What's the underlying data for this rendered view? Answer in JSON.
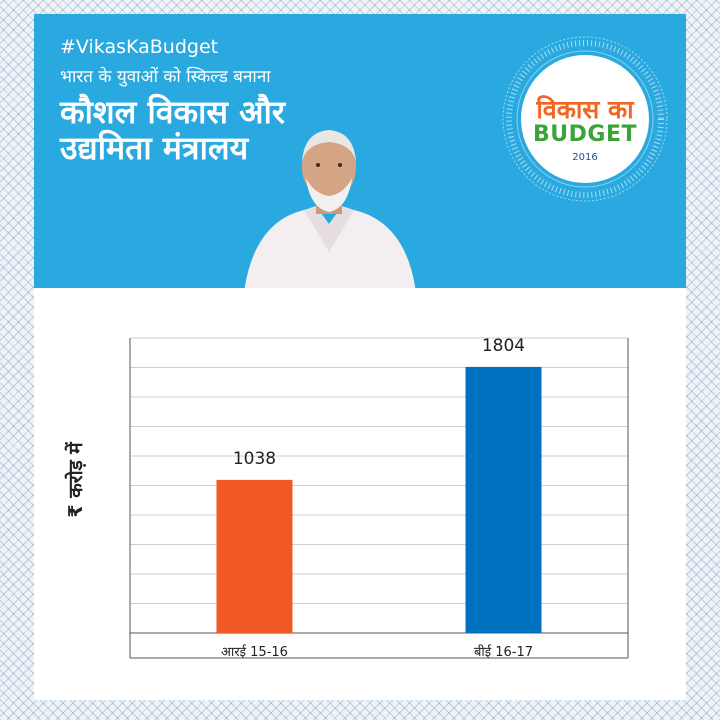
{
  "header": {
    "hashtag": "#VikasKaBudget",
    "subtitle": "भारत के युवाओं को स्किल्ड बनाना",
    "title_line1": "कौशल विकास और",
    "title_line2": "उद्यमिता मंत्रालय"
  },
  "logo": {
    "line1": "विकास का",
    "line2": "BUDGET",
    "year": "2016"
  },
  "colors": {
    "banner": "#29a9df",
    "bar_re": "#f15a24",
    "bar_be": "#0070c0"
  },
  "chart_data": {
    "type": "bar",
    "categories": [
      "आरई 15-16",
      "बीई 16-17"
    ],
    "values": [
      1038,
      1804
    ],
    "data_labels": [
      "1038",
      "1804"
    ],
    "ylabel": "₹ करोड़ में",
    "ylim": [
      0,
      2000
    ],
    "grid": true,
    "gridline_step": 200,
    "bar_colors": [
      "#f15a24",
      "#0070c0"
    ]
  }
}
